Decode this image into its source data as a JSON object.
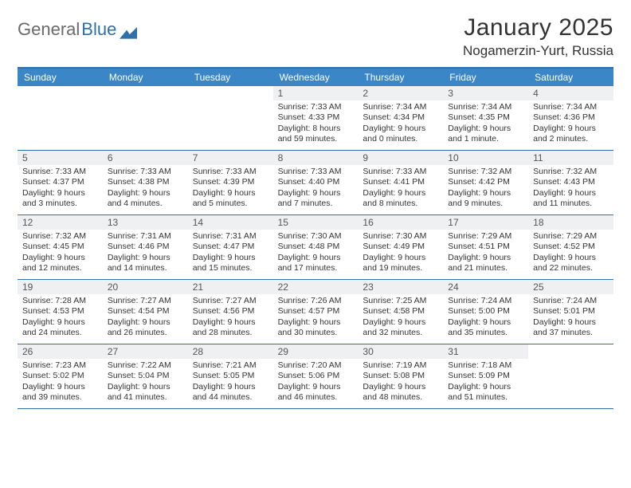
{
  "logo": {
    "text1": "General",
    "text2": "Blue"
  },
  "title": "January 2025",
  "location": "Nogamerzin-Yurt, Russia",
  "colors": {
    "header_bg": "#3b86c6",
    "border": "#2f6fab",
    "daynum_bg": "#eef0f2",
    "text": "#333333"
  },
  "day_names": [
    "Sunday",
    "Monday",
    "Tuesday",
    "Wednesday",
    "Thursday",
    "Friday",
    "Saturday"
  ],
  "weeks": [
    [
      null,
      null,
      null,
      {
        "n": "1",
        "sr": "7:33 AM",
        "ss": "4:33 PM",
        "dl": "8 hours and 59 minutes."
      },
      {
        "n": "2",
        "sr": "7:34 AM",
        "ss": "4:34 PM",
        "dl": "9 hours and 0 minutes."
      },
      {
        "n": "3",
        "sr": "7:34 AM",
        "ss": "4:35 PM",
        "dl": "9 hours and 1 minute."
      },
      {
        "n": "4",
        "sr": "7:34 AM",
        "ss": "4:36 PM",
        "dl": "9 hours and 2 minutes."
      }
    ],
    [
      {
        "n": "5",
        "sr": "7:33 AM",
        "ss": "4:37 PM",
        "dl": "9 hours and 3 minutes."
      },
      {
        "n": "6",
        "sr": "7:33 AM",
        "ss": "4:38 PM",
        "dl": "9 hours and 4 minutes."
      },
      {
        "n": "7",
        "sr": "7:33 AM",
        "ss": "4:39 PM",
        "dl": "9 hours and 5 minutes."
      },
      {
        "n": "8",
        "sr": "7:33 AM",
        "ss": "4:40 PM",
        "dl": "9 hours and 7 minutes."
      },
      {
        "n": "9",
        "sr": "7:33 AM",
        "ss": "4:41 PM",
        "dl": "9 hours and 8 minutes."
      },
      {
        "n": "10",
        "sr": "7:32 AM",
        "ss": "4:42 PM",
        "dl": "9 hours and 9 minutes."
      },
      {
        "n": "11",
        "sr": "7:32 AM",
        "ss": "4:43 PM",
        "dl": "9 hours and 11 minutes."
      }
    ],
    [
      {
        "n": "12",
        "sr": "7:32 AM",
        "ss": "4:45 PM",
        "dl": "9 hours and 12 minutes."
      },
      {
        "n": "13",
        "sr": "7:31 AM",
        "ss": "4:46 PM",
        "dl": "9 hours and 14 minutes."
      },
      {
        "n": "14",
        "sr": "7:31 AM",
        "ss": "4:47 PM",
        "dl": "9 hours and 15 minutes."
      },
      {
        "n": "15",
        "sr": "7:30 AM",
        "ss": "4:48 PM",
        "dl": "9 hours and 17 minutes."
      },
      {
        "n": "16",
        "sr": "7:30 AM",
        "ss": "4:49 PM",
        "dl": "9 hours and 19 minutes."
      },
      {
        "n": "17",
        "sr": "7:29 AM",
        "ss": "4:51 PM",
        "dl": "9 hours and 21 minutes."
      },
      {
        "n": "18",
        "sr": "7:29 AM",
        "ss": "4:52 PM",
        "dl": "9 hours and 22 minutes."
      }
    ],
    [
      {
        "n": "19",
        "sr": "7:28 AM",
        "ss": "4:53 PM",
        "dl": "9 hours and 24 minutes."
      },
      {
        "n": "20",
        "sr": "7:27 AM",
        "ss": "4:54 PM",
        "dl": "9 hours and 26 minutes."
      },
      {
        "n": "21",
        "sr": "7:27 AM",
        "ss": "4:56 PM",
        "dl": "9 hours and 28 minutes."
      },
      {
        "n": "22",
        "sr": "7:26 AM",
        "ss": "4:57 PM",
        "dl": "9 hours and 30 minutes."
      },
      {
        "n": "23",
        "sr": "7:25 AM",
        "ss": "4:58 PM",
        "dl": "9 hours and 32 minutes."
      },
      {
        "n": "24",
        "sr": "7:24 AM",
        "ss": "5:00 PM",
        "dl": "9 hours and 35 minutes."
      },
      {
        "n": "25",
        "sr": "7:24 AM",
        "ss": "5:01 PM",
        "dl": "9 hours and 37 minutes."
      }
    ],
    [
      {
        "n": "26",
        "sr": "7:23 AM",
        "ss": "5:02 PM",
        "dl": "9 hours and 39 minutes."
      },
      {
        "n": "27",
        "sr": "7:22 AM",
        "ss": "5:04 PM",
        "dl": "9 hours and 41 minutes."
      },
      {
        "n": "28",
        "sr": "7:21 AM",
        "ss": "5:05 PM",
        "dl": "9 hours and 44 minutes."
      },
      {
        "n": "29",
        "sr": "7:20 AM",
        "ss": "5:06 PM",
        "dl": "9 hours and 46 minutes."
      },
      {
        "n": "30",
        "sr": "7:19 AM",
        "ss": "5:08 PM",
        "dl": "9 hours and 48 minutes."
      },
      {
        "n": "31",
        "sr": "7:18 AM",
        "ss": "5:09 PM",
        "dl": "9 hours and 51 minutes."
      },
      null
    ]
  ],
  "labels": {
    "sunrise": "Sunrise:",
    "sunset": "Sunset:",
    "daylight": "Daylight:"
  }
}
